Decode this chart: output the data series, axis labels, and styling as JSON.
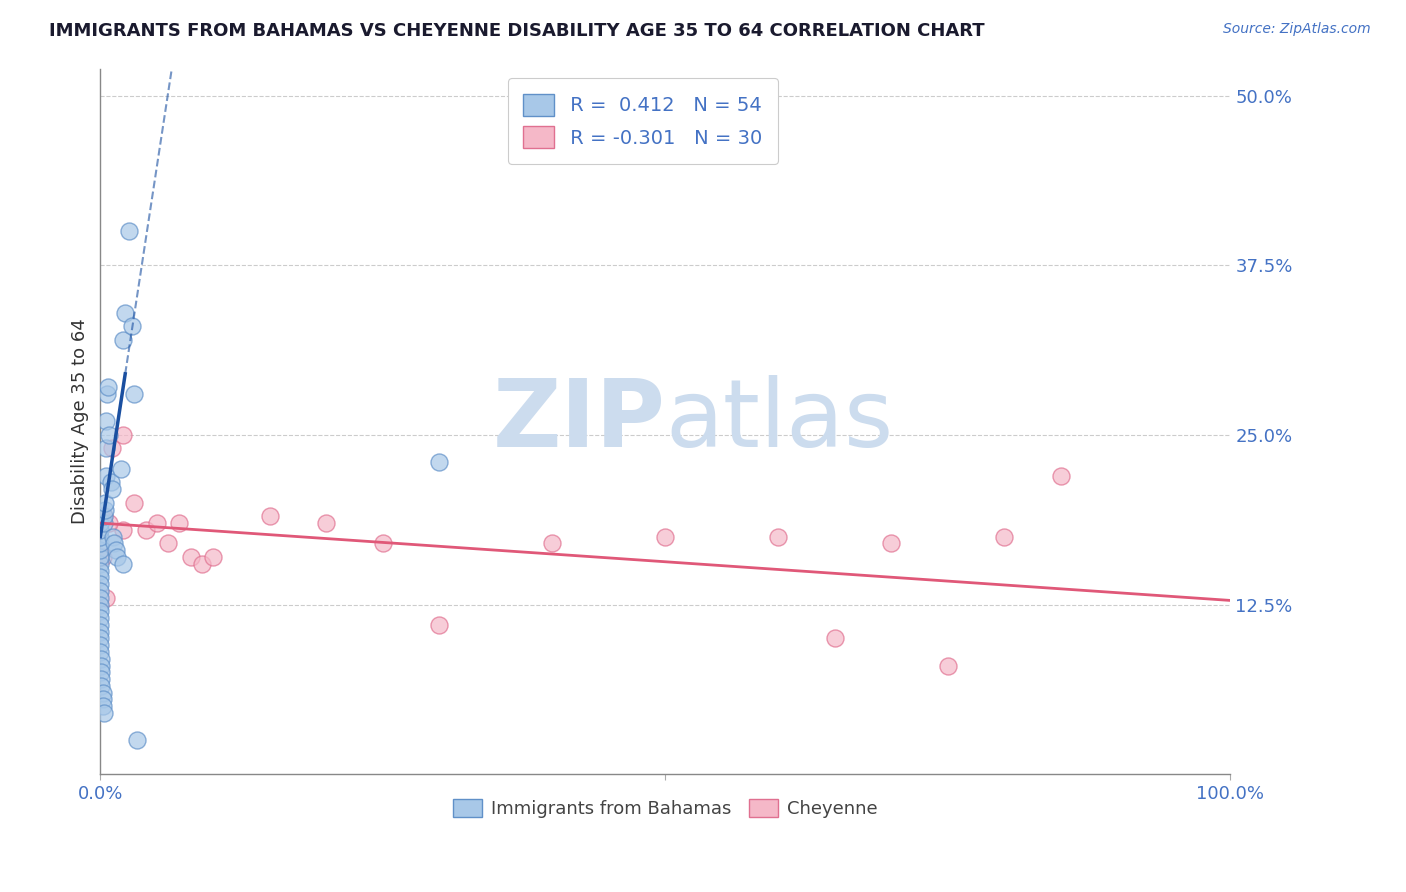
{
  "title": "IMMIGRANTS FROM BAHAMAS VS CHEYENNE DISABILITY AGE 35 TO 64 CORRELATION CHART",
  "source": "Source: ZipAtlas.com",
  "ylabel": "Disability Age 35 to 64",
  "xlim": [
    0.0,
    1.0
  ],
  "ylim": [
    0.0,
    0.52
  ],
  "ytick_vals": [
    0.125,
    0.25,
    0.375,
    0.5
  ],
  "ytick_labels": [
    "12.5%",
    "25.0%",
    "37.5%",
    "50.0%"
  ],
  "xtick_vals": [
    0.0,
    0.5,
    1.0
  ],
  "xtick_labels": [
    "0.0%",
    "",
    "100.0%"
  ],
  "blue_R": 0.412,
  "blue_N": 54,
  "pink_R": -0.301,
  "pink_N": 30,
  "blue_color": "#a8c8e8",
  "pink_color": "#f5b8c8",
  "blue_edge_color": "#6090c8",
  "pink_edge_color": "#e07090",
  "blue_line_color": "#1a4fa0",
  "pink_line_color": "#e05878",
  "blue_label": "Immigrants from Bahamas",
  "pink_label": "Cheyenne",
  "grid_color": "#cccccc",
  "axis_tick_color": "#4472c4",
  "watermark_color": "#ccdcee",
  "title_color": "#1a1a2e",
  "source_color": "#4472c4",
  "blue_x": [
    0.0,
    0.0,
    0.0,
    0.0,
    0.0,
    0.0,
    0.0,
    0.0,
    0.0,
    0.0,
    0.0,
    0.0,
    0.0,
    0.0,
    0.0,
    0.0,
    0.0,
    0.0,
    0.0,
    0.0,
    0.001,
    0.001,
    0.001,
    0.001,
    0.001,
    0.002,
    0.002,
    0.002,
    0.003,
    0.003,
    0.003,
    0.004,
    0.004,
    0.005,
    0.005,
    0.005,
    0.006,
    0.007,
    0.008,
    0.009,
    0.01,
    0.011,
    0.012,
    0.014,
    0.015,
    0.018,
    0.02,
    0.022,
    0.025,
    0.028,
    0.03,
    0.032,
    0.3,
    0.02
  ],
  "blue_y": [
    0.155,
    0.16,
    0.165,
    0.17,
    0.175,
    0.18,
    0.15,
    0.145,
    0.14,
    0.135,
    0.185,
    0.13,
    0.125,
    0.12,
    0.115,
    0.11,
    0.105,
    0.1,
    0.095,
    0.09,
    0.085,
    0.08,
    0.075,
    0.07,
    0.065,
    0.06,
    0.055,
    0.05,
    0.045,
    0.185,
    0.19,
    0.195,
    0.2,
    0.22,
    0.24,
    0.26,
    0.28,
    0.285,
    0.25,
    0.215,
    0.21,
    0.175,
    0.17,
    0.165,
    0.16,
    0.225,
    0.32,
    0.34,
    0.4,
    0.33,
    0.28,
    0.025,
    0.23,
    0.155
  ],
  "pink_x": [
    0.0,
    0.0,
    0.003,
    0.01,
    0.02,
    0.02,
    0.03,
    0.04,
    0.05,
    0.06,
    0.07,
    0.08,
    0.09,
    0.1,
    0.15,
    0.2,
    0.25,
    0.3,
    0.4,
    0.5,
    0.6,
    0.65,
    0.7,
    0.75,
    0.8,
    0.85,
    0.001,
    0.002,
    0.005,
    0.008
  ],
  "pink_y": [
    0.185,
    0.185,
    0.19,
    0.24,
    0.25,
    0.18,
    0.2,
    0.18,
    0.185,
    0.17,
    0.185,
    0.16,
    0.155,
    0.16,
    0.19,
    0.185,
    0.17,
    0.11,
    0.17,
    0.175,
    0.175,
    0.1,
    0.17,
    0.08,
    0.175,
    0.22,
    0.19,
    0.16,
    0.13,
    0.185
  ],
  "blue_trend_x0": 0.0,
  "blue_trend_x1": 0.022,
  "blue_trend_y0": 0.175,
  "blue_trend_y1": 0.295,
  "pink_trend_x0": 0.0,
  "pink_trend_x1": 1.0,
  "pink_trend_y0": 0.185,
  "pink_trend_y1": 0.128
}
